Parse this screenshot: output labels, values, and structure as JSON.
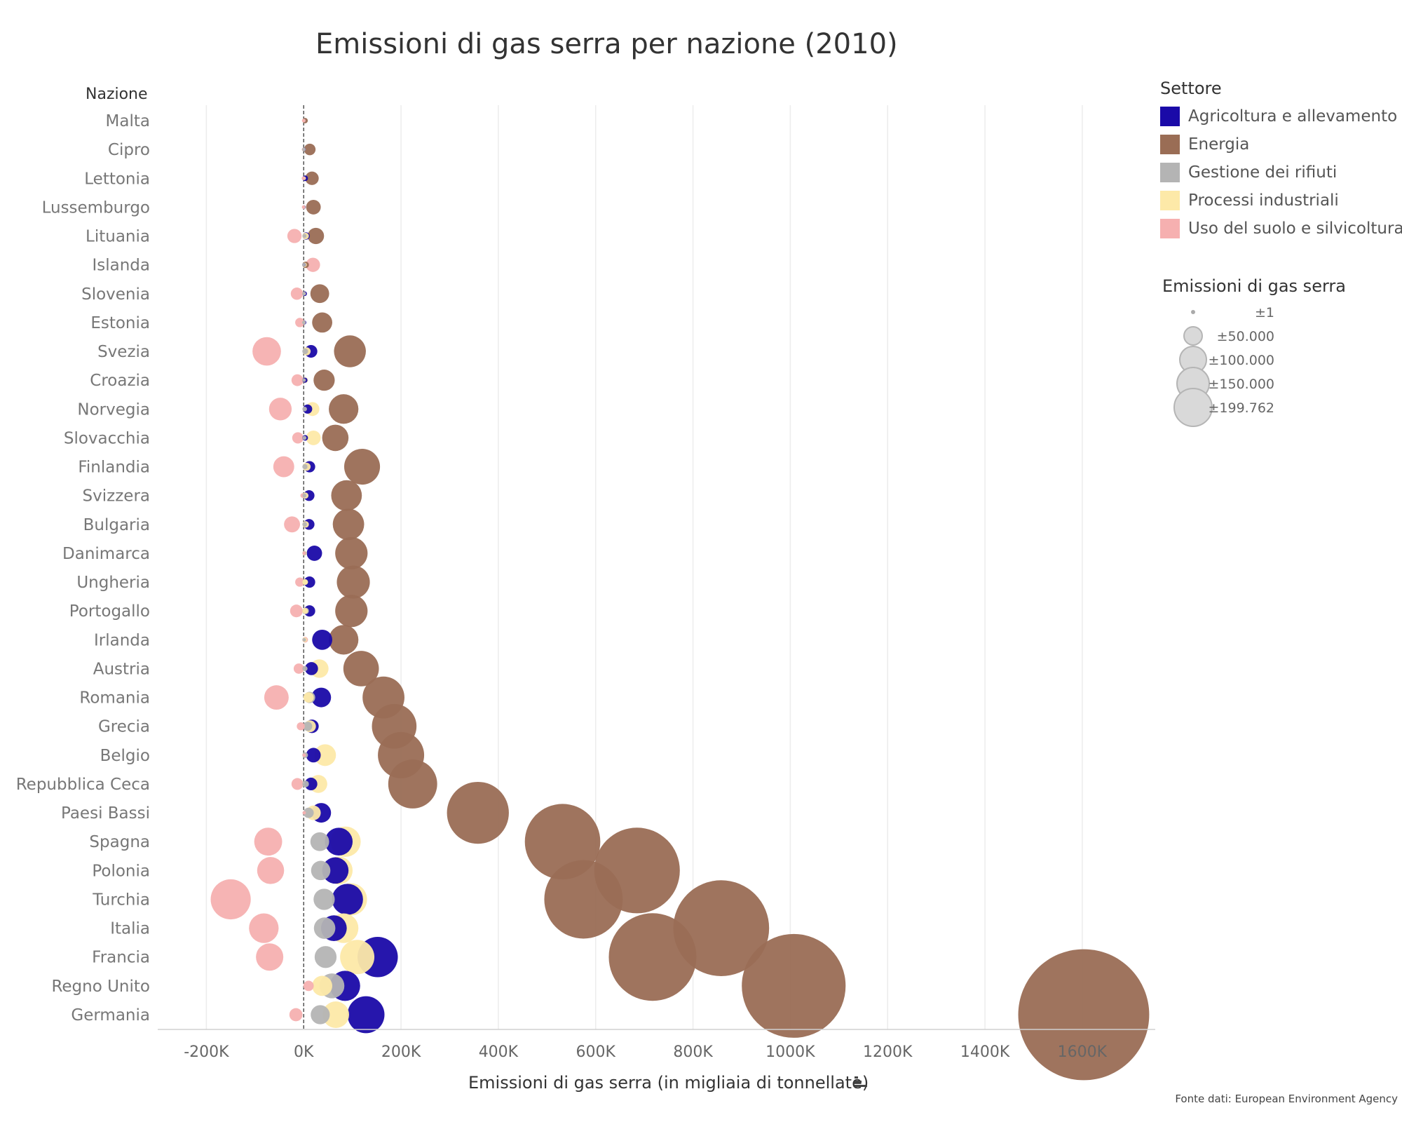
{
  "chart_data": {
    "type": "scatter",
    "title": "Emissioni di gas serra per nazione (2010)",
    "ylabel": "Nazione",
    "xlabel": "Emissioni di gas serra (in migliaia di tonnellate)",
    "xlim": [
      -300000,
      1750000
    ],
    "x_ticks": [
      -200000,
      0,
      200000,
      400000,
      600000,
      800000,
      1000000,
      1200000,
      1400000,
      1600000
    ],
    "x_tick_labels": [
      "-200K",
      "0K",
      "200K",
      "400K",
      "600K",
      "800K",
      "1000K",
      "1200K",
      "1400K",
      "1600K"
    ],
    "grid": "vertical",
    "legend_position": "right",
    "categories": [
      "Malta",
      "Cipro",
      "Lettonia",
      "Lussemburgo",
      "Lituania",
      "Islanda",
      "Slovenia",
      "Estonia",
      "Svezia",
      "Croazia",
      "Norvegia",
      "Slovacchia",
      "Finlandia",
      "Svizzera",
      "Bulgaria",
      "Danimarca",
      "Ungheria",
      "Portogallo",
      "Irlanda",
      "Austria",
      "Romania",
      "Grecia",
      "Belgio",
      "Repubblica Ceca",
      "Paesi Bassi",
      "Spagna",
      "Polonia",
      "Turchia",
      "Italia",
      "Francia",
      "Regno Unito",
      "Germania"
    ],
    "series": [
      {
        "name": "Agricoltura e allevamento",
        "color": "#1a0aa8",
        "values": [
          300,
          600,
          3000,
          700,
          5000,
          600,
          2000,
          1400,
          15000,
          2500,
          8000,
          3000,
          12000,
          11000,
          11000,
          22000,
          12000,
          12000,
          38000,
          16000,
          36000,
          17000,
          20000,
          15000,
          36000,
          72000,
          65000,
          90000,
          62000,
          152000,
          85000,
          128000
        ]
      },
      {
        "name": "Energia",
        "color": "#9a6d55",
        "values": [
          2800,
          12500,
          17000,
          20000,
          25000,
          4000,
          33000,
          38000,
          95000,
          42000,
          82000,
          65000,
          120000,
          88000,
          92000,
          98000,
          102000,
          98000,
          82000,
          118000,
          164000,
          186000,
          200000,
          224000,
          358000,
          532000,
          685000,
          575000,
          858000,
          717000,
          1007000,
          1603000
        ]
      },
      {
        "name": "Gestione dei rifiuti",
        "color": "#b4b4b4",
        "values": [
          300,
          200,
          800,
          300,
          1500,
          200,
          600,
          300,
          3000,
          800,
          2000,
          1500,
          2500,
          1500,
          2000,
          1500,
          3000,
          4000,
          1000,
          2500,
          12000,
          8000,
          3000,
          4000,
          10000,
          33000,
          35000,
          42000,
          43000,
          45000,
          58000,
          34000
        ]
      },
      {
        "name": "Processi industriali",
        "color": "#fde9a8",
        "values": [
          100,
          700,
          800,
          800,
          4000,
          1800,
          1000,
          600,
          6000,
          3000,
          18000,
          20000,
          6000,
          3500,
          4000,
          2000,
          3000,
          3000,
          2000,
          32000,
          10000,
          13000,
          44000,
          30000,
          20000,
          86000,
          72000,
          97000,
          82000,
          110000,
          38000,
          66000
        ]
      },
      {
        "name": "Uso del suolo e silvicoltura",
        "color": "#f6b0b0",
        "values": [
          0,
          -400,
          -600,
          -300,
          -19000,
          19000,
          -14000,
          -8000,
          -76000,
          -13000,
          -48000,
          -12000,
          -41000,
          -2000,
          -24000,
          900,
          -8000,
          -15000,
          3000,
          -10000,
          -56000,
          -6000,
          900,
          -13000,
          1000,
          -73000,
          -68000,
          -150000,
          -82000,
          -70000,
          10000,
          -16000
        ]
      }
    ],
    "size_legend_title": "Emissioni di gas serra",
    "size_legend": [
      {
        "label": "±1",
        "value": 1
      },
      {
        "label": "±50.000",
        "value": 50000
      },
      {
        "label": "±100.000",
        "value": 100000
      },
      {
        "label": "±150.000",
        "value": 150000
      },
      {
        "label": "±199.762",
        "value": 199762
      }
    ],
    "legend_title": "Settore",
    "source": "Fonte dati: European Environment Agency"
  }
}
